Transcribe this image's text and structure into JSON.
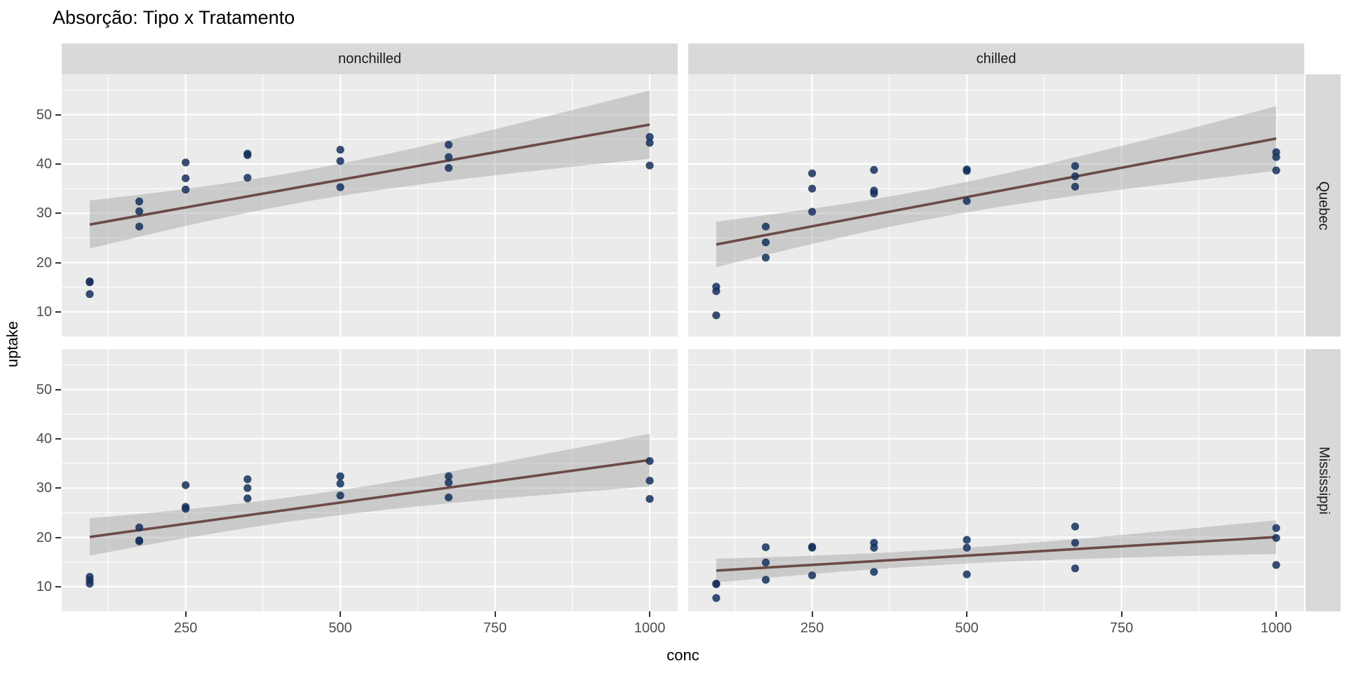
{
  "title": "Absorção: Tipo x Tratamento",
  "chart_data": {
    "type": "scatter",
    "title": "Absorção: Tipo x Tratamento",
    "xlabel": "conc",
    "ylabel": "uptake",
    "x_ticks": [
      250,
      500,
      750,
      1000
    ],
    "x_minor_ticks": [
      125,
      375,
      625,
      875
    ],
    "y_ticks": [
      10,
      20,
      30,
      40,
      50
    ],
    "y_minor_ticks": [
      15,
      25,
      35,
      45,
      55
    ],
    "x_domain": [
      49.75,
      1045.25
    ],
    "y_domain": [
      5.0,
      58.2
    ],
    "grid": "on",
    "legend": "none",
    "col_facets": [
      "nonchilled",
      "chilled"
    ],
    "row_facets": [
      "Quebec",
      "Mississippi"
    ],
    "x_values": [
      95,
      175,
      250,
      350,
      500,
      675,
      1000
    ],
    "smooth": {
      "method": "lm",
      "ci_level": 0.95,
      "t_crit": 2.093,
      "x_range": [
        95,
        1000
      ]
    },
    "panels": [
      {
        "row": 0,
        "col": 0,
        "row_label": "Quebec",
        "col_label": "nonchilled",
        "series": [
          [
            16.0,
            30.4,
            34.8,
            37.2,
            35.3,
            39.2,
            39.7
          ],
          [
            13.6,
            27.3,
            37.1,
            41.8,
            40.6,
            41.4,
            44.3
          ],
          [
            16.2,
            32.4,
            40.3,
            42.1,
            42.9,
            43.9,
            45.5
          ]
        ]
      },
      {
        "row": 0,
        "col": 1,
        "row_label": "Quebec",
        "col_label": "chilled",
        "series": [
          [
            14.2,
            24.1,
            30.3,
            34.6,
            32.5,
            35.4,
            38.7
          ],
          [
            9.3,
            27.3,
            35.0,
            38.8,
            38.6,
            37.5,
            42.4
          ],
          [
            15.1,
            21.0,
            38.1,
            34.0,
            38.9,
            39.6,
            41.4
          ]
        ]
      },
      {
        "row": 1,
        "col": 0,
        "row_label": "Mississippi",
        "col_label": "nonchilled",
        "series": [
          [
            10.6,
            19.2,
            26.2,
            30.0,
            30.9,
            32.4,
            35.5
          ],
          [
            12.0,
            22.0,
            30.6,
            31.8,
            32.4,
            31.1,
            31.5
          ],
          [
            11.3,
            19.4,
            25.8,
            27.9,
            28.5,
            28.1,
            27.8
          ]
        ]
      },
      {
        "row": 1,
        "col": 1,
        "row_label": "Mississippi",
        "col_label": "chilled",
        "series": [
          [
            10.5,
            14.9,
            18.1,
            18.9,
            19.5,
            22.2,
            21.9
          ],
          [
            7.7,
            11.4,
            12.3,
            13.0,
            12.5,
            13.7,
            14.4
          ],
          [
            10.6,
            18.0,
            17.9,
            17.9,
            17.9,
            18.9,
            19.9
          ]
        ]
      }
    ],
    "colors": {
      "panel_bg": "#EBEBEB",
      "strip_bg": "#D9D9D9",
      "grid": "#FFFFFF",
      "point": "#14305C",
      "point_alpha": 0.85,
      "line": "#6B4A47",
      "band": "#999999",
      "band_alpha": 0.4,
      "tick_text": "#4D4D4D",
      "axis_text": "#000000",
      "tick_mark": "#333333"
    }
  }
}
